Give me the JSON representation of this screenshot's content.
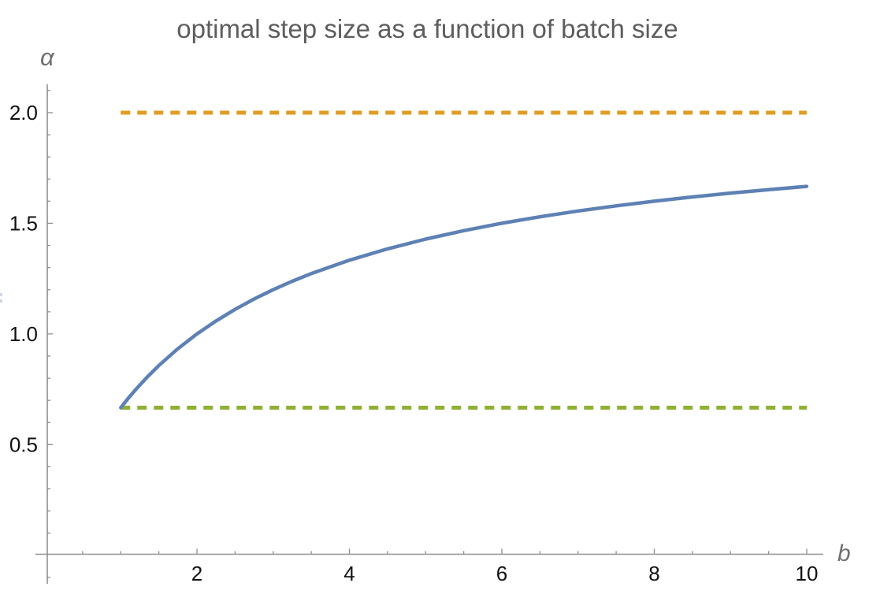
{
  "window": {
    "background": "#ffffff"
  },
  "chart": {
    "title": "optimal step size as a function of batch size",
    "x_axis_label": "b",
    "y_axis_label": "α"
  },
  "chart_data": {
    "type": "line",
    "title": "optimal step size as a function of batch size",
    "xlabel": "b",
    "ylabel": "α",
    "xlim": [
      0,
      10.5
    ],
    "ylim": [
      0,
      2.15
    ],
    "grid": false,
    "legend": "none",
    "x_major_ticks": [
      2,
      4,
      6,
      8,
      10
    ],
    "x_tick_labels": [
      "2",
      "4",
      "6",
      "8",
      "10"
    ],
    "x_minor_tick_step": 0.5,
    "y_major_ticks": [
      0.5,
      1.0,
      1.5,
      2.0
    ],
    "y_tick_labels": [
      "0.5",
      "1.0",
      "1.5",
      "2.0"
    ],
    "y_minor_tick_step": 0.1,
    "series": [
      {
        "name": "optimal step size curve (2b/(b+2))",
        "type": "solid-line",
        "color": "#5E81B5",
        "stroke_width": 4.5,
        "x": [
          1,
          1.1,
          1.2,
          1.35,
          1.5,
          1.75,
          2,
          2.25,
          2.5,
          2.75,
          3,
          3.25,
          3.5,
          4,
          4.5,
          5,
          5.5,
          6,
          6.5,
          7,
          7.5,
          8,
          8.5,
          9,
          9.5,
          10
        ],
        "y": [
          0.6667,
          0.7097,
          0.75,
          0.806,
          0.8571,
          0.9333,
          1.0,
          1.0588,
          1.1111,
          1.1579,
          1.2,
          1.2381,
          1.2727,
          1.3333,
          1.3846,
          1.4286,
          1.4667,
          1.5,
          1.5294,
          1.5556,
          1.5789,
          1.6,
          1.619,
          1.6364,
          1.6522,
          1.6667
        ]
      },
      {
        "name": "upper asymptote",
        "type": "dashed-line",
        "color": "#E09C24",
        "stroke_width": 5,
        "y_const": 2.0,
        "x_range": [
          1,
          10
        ]
      },
      {
        "name": "lower bound (value at b=1)",
        "type": "dashed-line",
        "color": "#8FB032",
        "stroke_width": 5,
        "y_const": 0.6667,
        "x_range": [
          1,
          10
        ]
      }
    ]
  },
  "colors": {
    "title": "#5d5d5d",
    "axis": "#8f8f8f",
    "axis_label": "#707070",
    "tick_label": "#111111",
    "curve": "#5E81B5",
    "upper_dashed": "#E09C24",
    "lower_dashed": "#8FB032"
  }
}
